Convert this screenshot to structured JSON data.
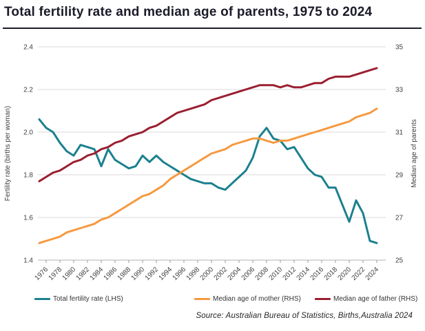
{
  "title": "Total fertility rate and median age of parents, 1975 to 2024",
  "source": "Source: Australian Bureau of Statistics, Births,Australia 2024",
  "colors": {
    "tfr": "#1B808E",
    "mother": "#F6993F",
    "father": "#9A1E30",
    "grid": "#D9D9D9",
    "axis": "#B3B3B3",
    "tick": "#999999",
    "title_text": "#1b1b29"
  },
  "chart_data": {
    "type": "line",
    "title": "Total fertility rate and median age of parents, 1975 to 2024",
    "grid": true,
    "legend_position": "bottom",
    "x": [
      1975,
      1976,
      1977,
      1978,
      1979,
      1980,
      1981,
      1982,
      1983,
      1984,
      1985,
      1986,
      1987,
      1988,
      1989,
      1990,
      1991,
      1992,
      1993,
      1994,
      1995,
      1996,
      1997,
      1998,
      1999,
      2000,
      2001,
      2002,
      2003,
      2004,
      2005,
      2006,
      2007,
      2008,
      2009,
      2010,
      2011,
      2012,
      2013,
      2014,
      2015,
      2016,
      2017,
      2018,
      2019,
      2020,
      2021,
      2022,
      2023,
      2024
    ],
    "x_tick_labels": [
      "1976",
      "1978",
      "1980",
      "1982",
      "1984",
      "1986",
      "1988",
      "1990",
      "1992",
      "1994",
      "1996",
      "1998",
      "2000",
      "2002",
      "2004",
      "2006",
      "2008",
      "2010",
      "2012",
      "2014",
      "2016",
      "2018",
      "2020",
      "2022",
      "2024"
    ],
    "left_axis": {
      "label": "Fertility rate (births per woman)",
      "min": 1.4,
      "max": 2.4,
      "ticks": [
        "2.4",
        "2.2",
        "2.0",
        "1.8",
        "1.6",
        "1.4"
      ]
    },
    "right_axis": {
      "label": "Median age of parents",
      "min": 25,
      "max": 35,
      "ticks": [
        "35",
        "33",
        "31",
        "29",
        "27",
        "25"
      ]
    },
    "series": [
      {
        "name": "Total fertility rate (LHS)",
        "axis": "left",
        "color": "#1B808E",
        "values": [
          2.06,
          2.02,
          2.0,
          1.95,
          1.91,
          1.89,
          1.94,
          1.93,
          1.92,
          1.84,
          1.92,
          1.87,
          1.85,
          1.83,
          1.84,
          1.89,
          1.86,
          1.89,
          1.86,
          1.84,
          1.82,
          1.8,
          1.78,
          1.77,
          1.76,
          1.76,
          1.74,
          1.73,
          1.76,
          1.79,
          1.82,
          1.88,
          1.98,
          2.02,
          1.97,
          1.96,
          1.92,
          1.93,
          1.88,
          1.83,
          1.8,
          1.79,
          1.74,
          1.74,
          1.66,
          1.58,
          1.68,
          1.62,
          1.49,
          1.48
        ]
      },
      {
        "name": "Median age of mother (RHS)",
        "axis": "right",
        "color": "#F6993F",
        "values": [
          25.8,
          25.9,
          26.0,
          26.1,
          26.3,
          26.4,
          26.5,
          26.6,
          26.7,
          26.9,
          27.0,
          27.2,
          27.4,
          27.6,
          27.8,
          28.0,
          28.1,
          28.3,
          28.5,
          28.8,
          29.0,
          29.2,
          29.4,
          29.6,
          29.8,
          30.0,
          30.1,
          30.2,
          30.4,
          30.5,
          30.6,
          30.7,
          30.7,
          30.6,
          30.5,
          30.6,
          30.6,
          30.7,
          30.8,
          30.9,
          31.0,
          31.1,
          31.2,
          31.3,
          31.4,
          31.5,
          31.7,
          31.8,
          31.9,
          32.1
        ]
      },
      {
        "name": "Median age of father (RHS)",
        "axis": "right",
        "color": "#9A1E30",
        "values": [
          28.7,
          28.9,
          29.1,
          29.2,
          29.4,
          29.6,
          29.7,
          29.9,
          30.0,
          30.2,
          30.3,
          30.5,
          30.6,
          30.8,
          30.9,
          31.0,
          31.2,
          31.3,
          31.5,
          31.7,
          31.9,
          32.0,
          32.1,
          32.2,
          32.3,
          32.5,
          32.6,
          32.7,
          32.8,
          32.9,
          33.0,
          33.1,
          33.2,
          33.2,
          33.2,
          33.1,
          33.2,
          33.1,
          33.1,
          33.2,
          33.3,
          33.3,
          33.5,
          33.6,
          33.6,
          33.6,
          33.7,
          33.8,
          33.9,
          34.0
        ]
      }
    ]
  }
}
